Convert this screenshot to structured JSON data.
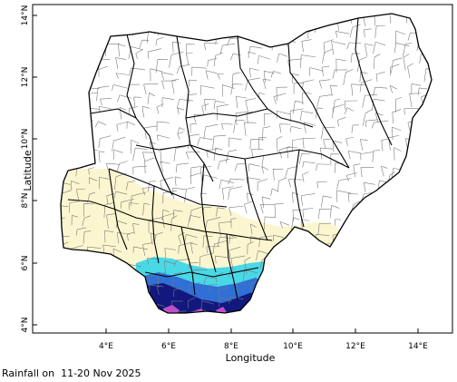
{
  "map": {
    "xlabel": "Longitude",
    "ylabel": "Latitude",
    "x_ticks": [
      "4°E",
      "6°E",
      "8°E",
      "10°E",
      "12°E",
      "14°E"
    ],
    "y_ticks": [
      "4°N",
      "6°N",
      "8°N",
      "10°N",
      "12°N",
      "14°N"
    ],
    "caption_prefix": "Rainfall on",
    "caption_date": "11-20 Nov 2025"
  },
  "colors": {
    "very_light": "#fbf6cf",
    "light_cyan": "#49d8e6",
    "medium_blue": "#2f6fd6",
    "dark_blue": "#12187e",
    "magenta": "#c050c8",
    "boundary_state": "#000000",
    "boundary_lga": "#7a7a7a"
  }
}
